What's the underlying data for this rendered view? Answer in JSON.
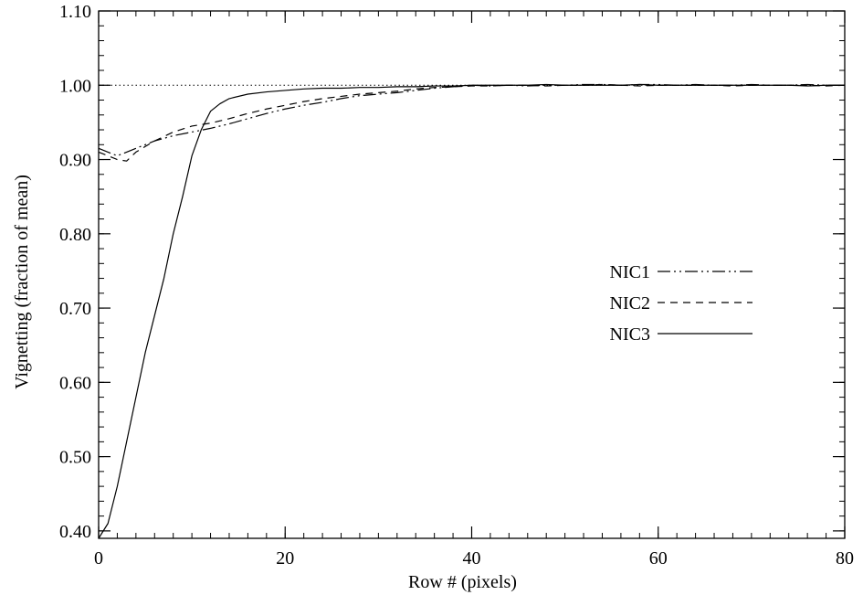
{
  "chart_data": {
    "type": "line",
    "xlabel": "Row # (pixels)",
    "ylabel": "Vignetting (fraction of mean)",
    "xlim": [
      0,
      80
    ],
    "ylim": [
      0.39,
      1.1
    ],
    "x_ticks": [
      0,
      20,
      40,
      60,
      80
    ],
    "x_tick_labels": [
      "0",
      "20",
      "40",
      "60",
      "80"
    ],
    "x_minor_step": 2,
    "y_ticks": [
      0.4,
      0.5,
      0.6,
      0.7,
      0.8,
      0.9,
      1.0,
      1.1
    ],
    "y_tick_labels": [
      "0.40",
      "0.50",
      "0.60",
      "0.70",
      "0.80",
      "0.90",
      "1.00",
      "1.10"
    ],
    "y_minor_step": 0.02,
    "grid": false,
    "legend_position": "middle-right",
    "reference_line": {
      "y": 1.0,
      "style": "dotted"
    },
    "series": [
      {
        "name": "NIC1",
        "style": "dash-dot-dot",
        "x": [
          0,
          1,
          2,
          3,
          4,
          6,
          8,
          10,
          12,
          14,
          16,
          18,
          20,
          22,
          24,
          26,
          28,
          30,
          32,
          34,
          36,
          38,
          40,
          42,
          44,
          46,
          48,
          50,
          52,
          54,
          56,
          58,
          60,
          62,
          64,
          66,
          68,
          70,
          72,
          74,
          76,
          78,
          80
        ],
        "values": [
          0.915,
          0.91,
          0.905,
          0.91,
          0.915,
          0.925,
          0.932,
          0.937,
          0.942,
          0.948,
          0.955,
          0.962,
          0.968,
          0.973,
          0.977,
          0.982,
          0.986,
          0.988,
          0.99,
          0.993,
          0.996,
          0.998,
          1.0,
          0.999,
          1.0,
          0.999,
          1.0,
          1.0,
          1.001,
          1.001,
          1.0,
          1.001,
          1.001,
          1.0,
          1.001,
          1.0,
          1.0,
          1.001,
          1.0,
          1.0,
          1.001,
          1.0,
          1.0
        ]
      },
      {
        "name": "NIC2",
        "style": "dashed",
        "x": [
          0,
          1,
          2,
          3,
          4,
          6,
          8,
          10,
          12,
          14,
          16,
          18,
          20,
          22,
          24,
          26,
          28,
          30,
          32,
          34,
          36,
          38,
          40,
          42,
          44,
          46,
          48,
          50,
          52,
          54,
          56,
          58,
          60,
          62,
          64,
          66,
          68,
          70,
          72,
          74,
          76,
          78,
          80
        ],
        "values": [
          0.91,
          0.905,
          0.9,
          0.898,
          0.91,
          0.925,
          0.937,
          0.945,
          0.949,
          0.955,
          0.962,
          0.968,
          0.973,
          0.978,
          0.982,
          0.985,
          0.988,
          0.99,
          0.992,
          0.995,
          0.997,
          0.998,
          0.999,
          0.999,
          1.0,
          1.0,
          0.999,
          1.0,
          1.0,
          1.001,
          1.0,
          0.999,
          1.0,
          1.0,
          1.0,
          1.0,
          0.999,
          1.0,
          1.0,
          1.0,
          1.0,
          0.999,
          1.0
        ]
      },
      {
        "name": "NIC3",
        "style": "solid",
        "x": [
          0,
          1,
          2,
          3,
          4,
          5,
          6,
          7,
          8,
          9,
          10,
          11,
          12,
          13,
          14,
          16,
          18,
          20,
          22,
          24,
          26,
          28,
          30,
          32,
          34,
          36,
          38,
          40,
          42,
          44,
          46,
          48,
          50,
          52,
          54,
          56,
          58,
          60,
          62,
          64,
          66,
          68,
          70,
          72,
          74,
          76,
          78,
          80
        ],
        "values": [
          0.39,
          0.41,
          0.46,
          0.52,
          0.58,
          0.64,
          0.69,
          0.74,
          0.8,
          0.85,
          0.905,
          0.94,
          0.965,
          0.975,
          0.982,
          0.988,
          0.991,
          0.993,
          0.995,
          0.996,
          0.996,
          0.997,
          0.997,
          0.998,
          0.998,
          0.999,
          0.999,
          1.0,
          1.0,
          1.0,
          1.0,
          1.001,
          1.0,
          1.0,
          1.0,
          1.0,
          1.001,
          1.0,
          1.0,
          1.0,
          1.0,
          1.0,
          1.0,
          1.0,
          1.0,
          0.999,
          1.0,
          1.0
        ]
      }
    ]
  }
}
